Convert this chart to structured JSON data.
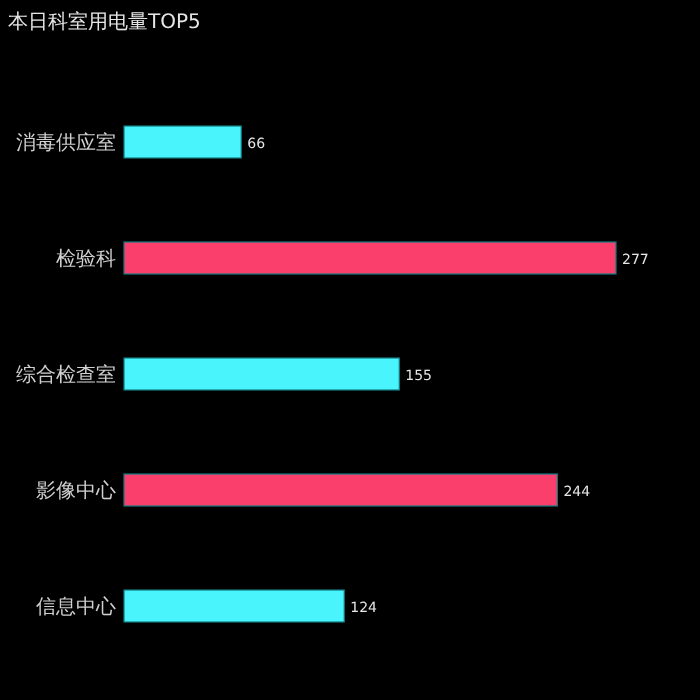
{
  "chart_data": {
    "type": "bar",
    "orientation": "horizontal",
    "title": "本日科室用电量TOP5",
    "categories": [
      "消毒供应室",
      "检验科",
      "综合检查室",
      "影像中心",
      "信息中心"
    ],
    "values": [
      66,
      277,
      155,
      244,
      124
    ],
    "colors": [
      "#4af4fd",
      "#fb3f6c",
      "#4af4fd",
      "#fb3f6c",
      "#4af4fd"
    ],
    "data_labels": true
  }
}
